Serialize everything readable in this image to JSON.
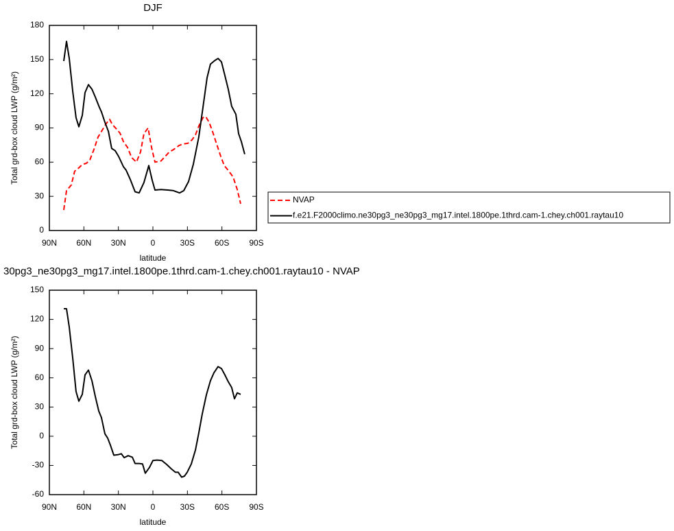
{
  "chart_data": [
    {
      "type": "line",
      "title": "DJF",
      "xlabel": "latitude",
      "ylabel": "Total grd-box cloud LWP (g/m²)",
      "xlim": [
        90,
        -90
      ],
      "xticks": [
        {
          "value": 90,
          "label": "90N"
        },
        {
          "value": 60,
          "label": "60N"
        },
        {
          "value": 30,
          "label": "30N"
        },
        0,
        {
          "value": -30,
          "label": "30S"
        },
        {
          "value": -60,
          "label": "60S"
        },
        {
          "value": -90,
          "label": "90S"
        }
      ],
      "ylim": [
        0,
        180
      ],
      "yticks": [
        0,
        30,
        60,
        90,
        120,
        150,
        180
      ],
      "legend": "right",
      "series": [
        {
          "name": "NVAP",
          "color": "#ff0000",
          "dash": true,
          "x": [
            77.5,
            75.1,
            70.9,
            68,
            64.4,
            61.4,
            57.8,
            54.8,
            51.3,
            47.7,
            43.5,
            40.5,
            37.6,
            35.2,
            31.6,
            28.6,
            25.6,
            22.1,
            18.5,
            14.3,
            10.7,
            7.8,
            4.2,
            1.2,
            -1.8,
            -7,
            -10.7,
            -14.3,
            -17.9,
            -22.6,
            -26.2,
            -30.4,
            -34,
            -37,
            -39.9,
            -43.5,
            -45.9,
            -48.9,
            -51.8,
            -55.4,
            -59,
            -62,
            -66.1,
            -69.7,
            -73.3,
            -76.3
          ],
          "values": [
            18,
            35,
            40,
            52,
            55,
            58,
            59,
            62,
            71,
            82,
            89,
            94,
            97.5,
            93,
            89,
            85.5,
            78,
            73,
            64,
            60,
            69,
            85,
            90,
            73,
            60,
            61,
            65,
            69,
            71,
            74.5,
            76,
            76.5,
            79.5,
            84,
            91.5,
            99,
            100,
            95,
            87,
            76,
            65,
            57,
            52,
            47,
            36,
            23.5
          ]
        },
        {
          "name": "f.e21.F2000climo.ne30pg3_ne30pg3_mg17.intel.1800pe.1thrd.cam-1.chey.ch001.raytau10",
          "color": "#000000",
          "dash": false,
          "x": [
            77.5,
            75.1,
            72.7,
            69.7,
            66.8,
            64.4,
            61.4,
            59,
            56,
            53,
            50,
            46.5,
            44.7,
            41.7,
            38.7,
            35.8,
            32.8,
            29.8,
            25.6,
            23.3,
            19.7,
            15.5,
            12,
            7.8,
            3.6,
            0.6,
            -1.8,
            -7,
            -13,
            -17.9,
            -23.2,
            -26.8,
            -31,
            -35.1,
            -39.9,
            -43.5,
            -47.1,
            -50,
            -53.6,
            -56.6,
            -59.6,
            -62.6,
            -65.5,
            -68.5,
            -72.1,
            -74.5,
            -76.9,
            -79.8
          ],
          "values": [
            148.7,
            166,
            151,
            122,
            99,
            91,
            101,
            121,
            128,
            124,
            117,
            108,
            104,
            95,
            87,
            72,
            70,
            65,
            56,
            53,
            45,
            34,
            33,
            42,
            57,
            44,
            35.5,
            36,
            35.5,
            35,
            33,
            35,
            43,
            58,
            82,
            108,
            134,
            146,
            149,
            151,
            148,
            136,
            124,
            109,
            102,
            85,
            78,
            67
          ]
        }
      ]
    },
    {
      "type": "line",
      "title": "30pg3_ne30pg3_mg17.intel.1800pe.1thrd.cam-1.chey.ch001.raytau10 - NVAP",
      "xlabel": "latitude",
      "ylabel": "Total grd-box cloud LWP (g/m²)",
      "xlim": [
        90,
        -90
      ],
      "xticks": [
        {
          "value": 90,
          "label": "90N"
        },
        {
          "value": 60,
          "label": "60N"
        },
        {
          "value": 30,
          "label": "30N"
        },
        0,
        {
          "value": -30,
          "label": "30S"
        },
        {
          "value": -60,
          "label": "60S"
        },
        {
          "value": -90,
          "label": "90S"
        }
      ],
      "ylim": [
        -60,
        150
      ],
      "yticks": [
        -60,
        -30,
        0,
        30,
        60,
        90,
        120,
        150
      ],
      "series": [
        {
          "color": "#000000",
          "dash": false,
          "x": [
            77.5,
            75.1,
            72.7,
            69.7,
            66.8,
            64.4,
            61.4,
            59,
            56,
            53,
            50,
            47.1,
            44.7,
            41.7,
            39.3,
            37,
            34,
            30.4,
            27.4,
            25,
            21.5,
            17.9,
            15.5,
            12,
            9,
            6.6,
            3,
            0,
            -3.6,
            -7.8,
            -12,
            -16,
            -19.6,
            -22,
            -25,
            -27.4,
            -29.8,
            -33.4,
            -37,
            -40,
            -42.9,
            -46.5,
            -50,
            -53,
            -56.6,
            -59.6,
            -62.6,
            -65.5,
            -68.5,
            -70.9,
            -73.3,
            -76.3
          ],
          "values": [
            131,
            131,
            112,
            80,
            46,
            36,
            43,
            63,
            68,
            57,
            40.5,
            26,
            19,
            2.5,
            -2,
            -9,
            -19.5,
            -19,
            -18,
            -22,
            -20,
            -21.5,
            -28,
            -28,
            -28.5,
            -38,
            -32,
            -25,
            -24.5,
            -25,
            -29,
            -33.5,
            -37,
            -37,
            -42,
            -41,
            -37,
            -28.5,
            -14,
            4,
            23,
            42.5,
            57,
            65,
            71.5,
            69.5,
            63,
            56,
            50,
            38.5,
            44.5,
            43
          ]
        }
      ]
    }
  ]
}
